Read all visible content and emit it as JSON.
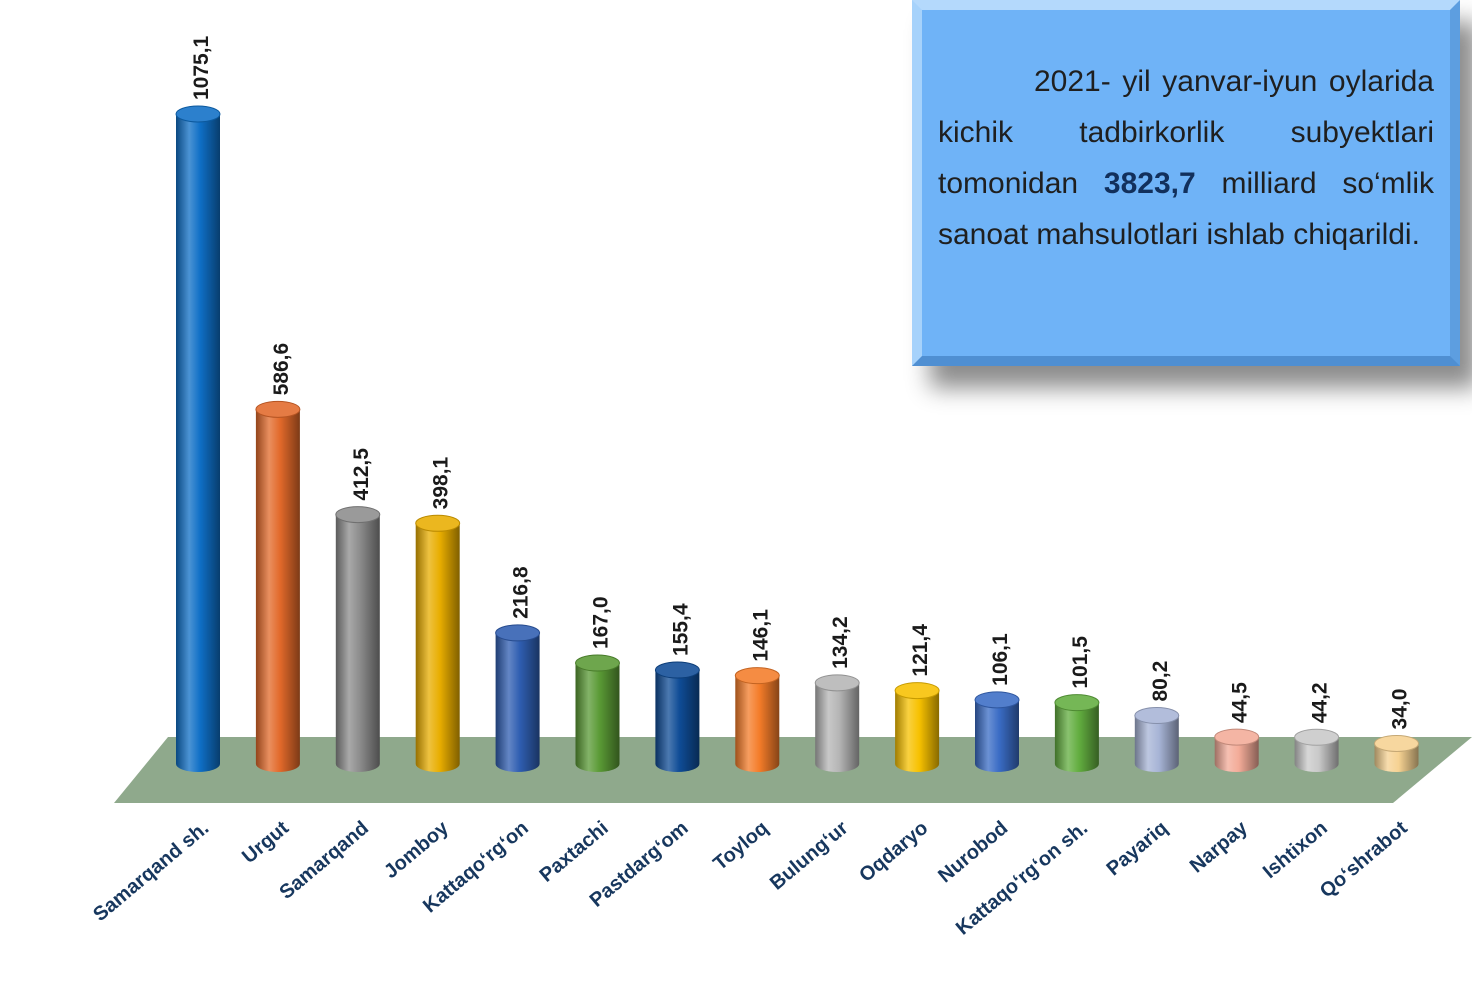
{
  "chart_data": {
    "type": "bar",
    "title": "",
    "xlabel": "",
    "ylabel": "",
    "ylim": [
      0,
      1100
    ],
    "categories": [
      "Samarqand sh.",
      "Urgut",
      "Samarqand",
      "Jomboy",
      "Kattaqo‘rg‘on",
      "Paxtachi",
      "Pastdarg‘om",
      "Toyloq",
      "Bulung‘ur",
      "Oqdaryo",
      "Nurobod",
      "Kattaqo‘rg‘on sh.",
      "Payariq",
      "Narpay",
      "Ishtixon",
      "Qo‘shrabot"
    ],
    "values": [
      1075.1,
      586.6,
      412.5,
      398.1,
      216.8,
      167.0,
      155.4,
      146.1,
      134.2,
      121.4,
      106.1,
      101.5,
      80.2,
      44.5,
      44.2,
      34.0
    ],
    "value_labels": [
      "1075,1",
      "586,6",
      "412,5",
      "398,1",
      "216,8",
      "167,0",
      "155,4",
      "146,1",
      "134,2",
      "121,4",
      "106,1",
      "101,5",
      "80,2",
      "44,5",
      "44,2",
      "34,0"
    ],
    "colors": [
      "#0f6fc6",
      "#e2692a",
      "#8c8c8c",
      "#e8ad00",
      "#2f5eb1",
      "#5a9a35",
      "#0f4c96",
      "#f47c29",
      "#b5b5b5",
      "#f7c100",
      "#3a6cc5",
      "#62ad3f",
      "#a7b4d6",
      "#f3ab98",
      "#c9c9c9",
      "#f6d292"
    ],
    "grid": false,
    "legend": "none",
    "floor_color": "#8fa98c"
  },
  "info": {
    "text_before": "2021- yil yanvar-iyun oylarida kichik tadbirkorlik subyektlari tomonidan ",
    "highlight": "3823,7",
    "text_after": " milliard so‘mlik sanoat mahsulotlari ishlab chiqarildi."
  }
}
